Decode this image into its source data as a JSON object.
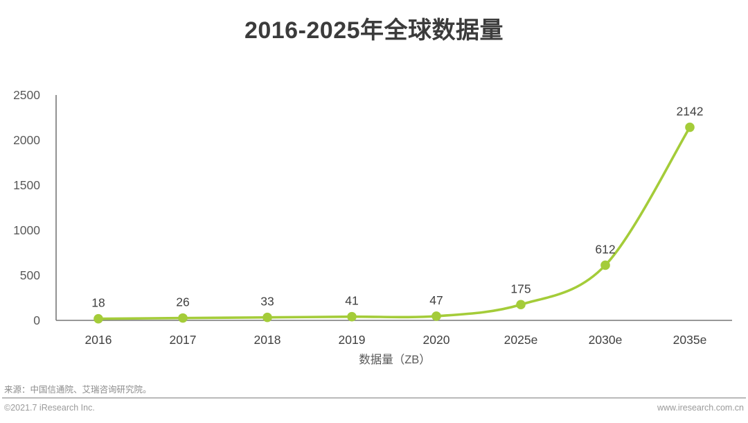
{
  "header": {
    "title": "2016-2025年全球数据量"
  },
  "chart_data": {
    "type": "line",
    "title": "2016-2025年全球数据量",
    "categories": [
      "2016",
      "2017",
      "2018",
      "2019",
      "2020",
      "2025e",
      "2030e",
      "2035e"
    ],
    "values": [
      18,
      26,
      33,
      41,
      47,
      175,
      612,
      2142
    ],
    "xlabel": "数据量（ZB）",
    "ylabel": "",
    "ylim": [
      0,
      2500
    ],
    "yticks": [
      0,
      500,
      1000,
      1500,
      2000,
      2500
    ],
    "grid": false,
    "legend": "none",
    "line_color": "#a4cc39",
    "marker": "circle",
    "axis_color": "#767676",
    "tick_label_color": "#595959",
    "data_label_color": "#404040"
  },
  "footer": {
    "source": "来源：中国信通院、艾瑞咨询研究院。",
    "copyright": "©2021.7 iResearch Inc.",
    "website": "www.iresearch.com.cn"
  }
}
